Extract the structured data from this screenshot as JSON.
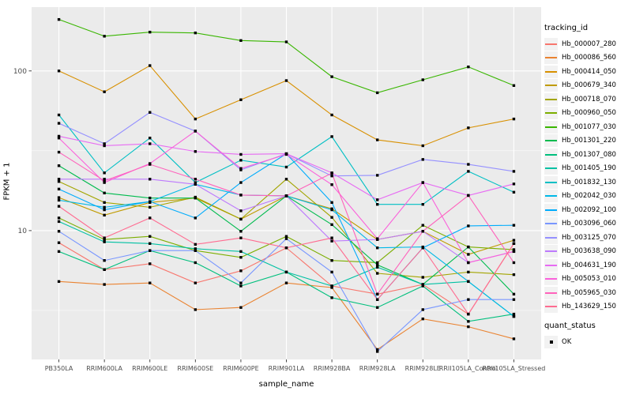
{
  "chart_data": {
    "type": "line",
    "title": "",
    "xlabel": "sample_name",
    "ylabel": "FPKM + 1",
    "y_scale": "log10",
    "ylim": [
      1.56,
      251
    ],
    "y_ticks": [
      10,
      100
    ],
    "y_minor_gridlines": [
      3.162,
      31.623
    ],
    "grid": true,
    "panel_bg": "#EBEBEB",
    "grid_color": "#FFFFFF",
    "tick_color": "#333333",
    "tick_label_color": "#4D4D4D",
    "point_shape": "filled-square",
    "point_color": "#000000",
    "legend": {
      "position": "right",
      "color_title": "tracking_id",
      "shape_title": "quant_status",
      "shape_items": [
        {
          "label": "OK"
        }
      ]
    },
    "categories": [
      "PB350LA",
      "RRIM600LA",
      "RRIM600LE",
      "RRIM600SE",
      "RRIM600PE",
      "RRIM901LA",
      "RRIM928BA",
      "RRIM928LA",
      "RRIM928LE",
      "RRII105LA_Control",
      "RRII105LA_Stressed"
    ],
    "series": [
      {
        "name": "Hb_000007_280",
        "color": "#F8766D",
        "values": [
          8.4,
          5.7,
          6.2,
          4.7,
          5.6,
          7.8,
          4.5,
          4.0,
          4.6,
          3.0,
          8.3
        ]
      },
      {
        "name": "Hb_000086_560",
        "color": "#EA8331",
        "values": [
          4.8,
          4.6,
          4.7,
          3.2,
          3.3,
          4.7,
          4.4,
          1.8,
          2.8,
          2.5,
          2.1
        ]
      },
      {
        "name": "Hb_000414_050",
        "color": "#D89000",
        "values": [
          100,
          74,
          108,
          50,
          66,
          87,
          53,
          37,
          34,
          44,
          50
        ]
      },
      {
        "name": "Hb_000679_340",
        "color": "#C09B00",
        "values": [
          16.1,
          12.5,
          15,
          16,
          11.8,
          16.5,
          13.7,
          8.8,
          9.9,
          7.1,
          8.7
        ]
      },
      {
        "name": "Hb_000718_070",
        "color": "#A3A500",
        "values": [
          20.3,
          15,
          14,
          16.2,
          11.8,
          21,
          12.1,
          5.4,
          5.1,
          5.5,
          5.3
        ]
      },
      {
        "name": "Hb_000960_050",
        "color": "#7CAE00",
        "values": [
          12,
          8.8,
          9.2,
          7.5,
          6.8,
          9.2,
          6.5,
          6.3,
          10.8,
          7.9,
          7.6
        ]
      },
      {
        "name": "Hb_001077_030",
        "color": "#39B600",
        "values": [
          210,
          165,
          175,
          173,
          155,
          152,
          92,
          73,
          88,
          106,
          81
        ]
      },
      {
        "name": "Hb_001301_220",
        "color": "#00BB4E",
        "values": [
          25.5,
          17.2,
          16,
          16,
          9.9,
          16.5,
          10.9,
          6.1,
          4.6,
          7.9,
          4.0
        ]
      },
      {
        "name": "Hb_001307_080",
        "color": "#00BF7D",
        "values": [
          7.4,
          5.7,
          7.5,
          6.3,
          4.5,
          5.5,
          3.8,
          3.3,
          4.5,
          2.7,
          3.0
        ]
      },
      {
        "name": "Hb_001405_190",
        "color": "#00C1A3",
        "values": [
          11.4,
          8.5,
          8.3,
          7.7,
          7.4,
          5.5,
          4.5,
          5.9,
          4.6,
          4.8,
          2.9
        ]
      },
      {
        "name": "Hb_001832_130",
        "color": "#00BFC4",
        "values": [
          53,
          23,
          38,
          20,
          27.6,
          25,
          38.8,
          14.6,
          14.6,
          23.5,
          17.4
        ]
      },
      {
        "name": "Hb_002042_030",
        "color": "#00B8E7",
        "values": [
          15.5,
          14,
          15.2,
          19.5,
          16.7,
          16.5,
          13.5,
          7.8,
          7.9,
          4.8,
          2.9
        ]
      },
      {
        "name": "Hb_002092_100",
        "color": "#00ACFC",
        "values": [
          18.2,
          13.5,
          15.2,
          12,
          20,
          30.3,
          15,
          3.7,
          7.8,
          10.7,
          10.8
        ]
      },
      {
        "name": "Hb_003096_060",
        "color": "#7997FF",
        "values": [
          9.9,
          6.5,
          7.5,
          7.5,
          4.7,
          8.9,
          5.5,
          1.75,
          3.2,
          3.7,
          3.7
        ]
      },
      {
        "name": "Hb_003125_070",
        "color": "#9590FF",
        "values": [
          47,
          35,
          55,
          42,
          24,
          30.3,
          22,
          22.2,
          27.9,
          26,
          23.5
        ]
      },
      {
        "name": "Hb_003638_090",
        "color": "#BD7AFD",
        "values": [
          21,
          21,
          21,
          19.5,
          13.3,
          16.5,
          8.6,
          8.8,
          9.9,
          6.3,
          7.4
        ]
      },
      {
        "name": "Hb_004631_190",
        "color": "#E76BF3",
        "values": [
          39,
          34,
          35,
          31.3,
          30,
          30.3,
          23,
          15.6,
          20,
          16.6,
          19.6
        ]
      },
      {
        "name": "Hb_005053_010",
        "color": "#FA62DB",
        "values": [
          38,
          20,
          26.3,
          42,
          24.5,
          30,
          19.4,
          8.9,
          20,
          6.3,
          7.4
        ]
      },
      {
        "name": "Hb_005965_030",
        "color": "#FF62BC",
        "values": [
          31,
          20.5,
          26,
          21,
          16.7,
          16.5,
          22.9,
          4.0,
          9.9,
          16.6,
          6.3
        ]
      },
      {
        "name": "Hb_143629_150",
        "color": "#FF6C91",
        "values": [
          14.2,
          9.0,
          12,
          8.2,
          9.0,
          7.8,
          9.0,
          3.7,
          7.8,
          3.0,
          8.3
        ]
      }
    ]
  }
}
